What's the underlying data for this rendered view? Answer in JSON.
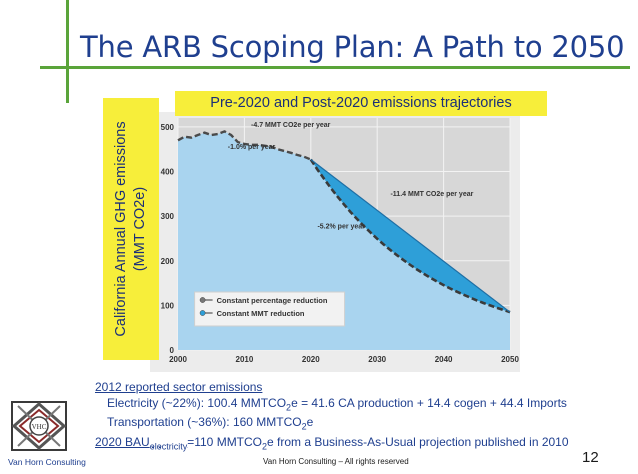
{
  "slide": {
    "title": "The ARB Scoping Plan: A Path to 2050",
    "subtitle": "Pre-2020 and Post-2020 emissions trajectories",
    "ylabel_line1": "California Annual GHG emissions",
    "ylabel_line2": "(MMT CO2e)",
    "footer": "Van Horn Consulting – All rights reserved",
    "page_number": "12",
    "logo_label": "Van Horn Consulting",
    "logo_mark": "VHC"
  },
  "notes": {
    "heading": "2012 reported sector emissions",
    "electricity_a": "Electricity (~22%): 100.4 MMTCO",
    "electricity_sub": "2",
    "electricity_b": "e = 41.6 CA production + 14.4 cogen + 44.4 Imports",
    "transport_a": "Transportation (~36%): 160 MMTCO",
    "transport_sub": "2",
    "transport_b": "e",
    "bau_label": "2020 BAU",
    "bau_sub": "electricity",
    "bau_a": "=110 MMTCO",
    "bau_co2sub": "2",
    "bau_b": "e from a Business-As-Usual projection published in 2010"
  },
  "chart_data": {
    "type": "area",
    "xlim": [
      2000,
      2050
    ],
    "ylim": [
      0,
      520
    ],
    "xticks": [
      2000,
      2010,
      2020,
      2030,
      2040,
      2050
    ],
    "yticks": [
      0,
      100,
      200,
      300,
      400,
      500
    ],
    "grid": true,
    "historical": {
      "x": [
        2000,
        2001,
        2002,
        2003,
        2004,
        2005,
        2006,
        2007,
        2008,
        2009,
        2010,
        2011,
        2012,
        2013,
        2014,
        2015,
        2016,
        2017,
        2018,
        2019,
        2020
      ],
      "y": [
        470,
        478,
        476,
        482,
        487,
        482,
        484,
        490,
        482,
        466,
        462,
        460,
        460,
        458,
        456,
        450,
        446,
        442,
        437,
        433,
        427
      ]
    },
    "series": [
      {
        "name": "Constant percentage reduction",
        "x": [
          2020,
          2025,
          2030,
          2035,
          2040,
          2045,
          2050
        ],
        "y": [
          427,
          330,
          255,
          197,
          152,
          117,
          85
        ]
      },
      {
        "name": "Constant MMT reduction",
        "x": [
          2020,
          2050
        ],
        "y": [
          427,
          85
        ]
      }
    ],
    "annotations": [
      "-4.7 MMT CO2e per year",
      "-1.0% per year",
      "-11.4 MMT CO2e per year",
      "-5.2% per year"
    ],
    "legend_position": "bottom-right",
    "colors": {
      "fill": "#a9d4ef",
      "band": "#2e9fd8",
      "line": "#4a4a4a",
      "plot_bg": "#e9e9e9"
    }
  }
}
